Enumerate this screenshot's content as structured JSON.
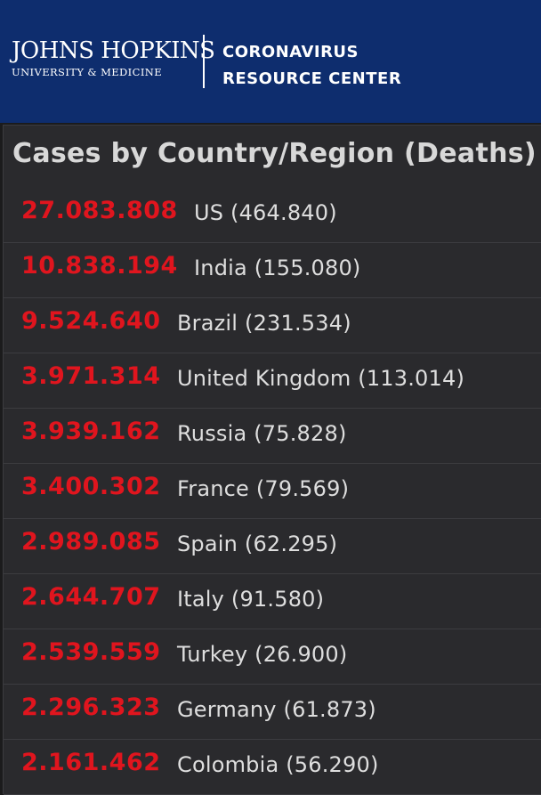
{
  "header": {
    "logo_main": "JOHNS HOPKINS",
    "logo_sub": "UNIVERSITY & MEDICINE",
    "center_line1": "CORONAVIRUS",
    "center_line2": "RESOURCE CENTER",
    "background_color": "#0e2d6e"
  },
  "panel": {
    "title": "Cases by Country/Region (Deaths)",
    "count_color": "#e0151e",
    "rows": [
      {
        "cases": "27.083.808",
        "label": "US (464.840)"
      },
      {
        "cases": "10.838.194",
        "label": "India (155.080)"
      },
      {
        "cases": "9.524.640",
        "label": "Brazil (231.534)"
      },
      {
        "cases": "3.971.314",
        "label": "United Kingdom (113.014)"
      },
      {
        "cases": "3.939.162",
        "label": "Russia (75.828)"
      },
      {
        "cases": "3.400.302",
        "label": "France (79.569)"
      },
      {
        "cases": "2.989.085",
        "label": "Spain (62.295)"
      },
      {
        "cases": "2.644.707",
        "label": "Italy (91.580)"
      },
      {
        "cases": "2.539.559",
        "label": "Turkey (26.900)"
      },
      {
        "cases": "2.296.323",
        "label": "Germany (61.873)"
      },
      {
        "cases": "2.161.462",
        "label": "Colombia (56.290)"
      }
    ]
  }
}
